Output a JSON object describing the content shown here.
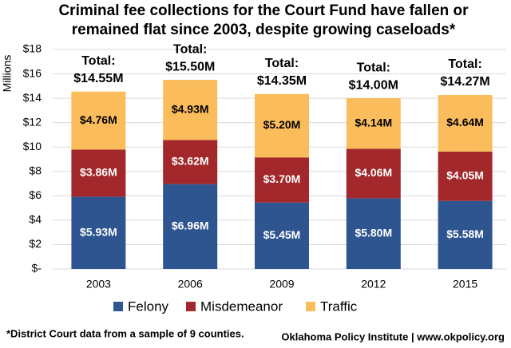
{
  "chart_data": {
    "type": "stacked_bar",
    "title": [
      "Criminal fee collections for the Court Fund have fallen or",
      "remained flat since 2003, despite growing caseloads*"
    ],
    "y_label": "Millions",
    "categories": [
      "2003",
      "2006",
      "2009",
      "2012",
      "2015"
    ],
    "series": [
      {
        "name": "Felony",
        "color": "#2e5590",
        "values": [
          5.93,
          6.96,
          5.45,
          5.8,
          5.58
        ],
        "value_labels": [
          "$5.93M",
          "$6.96M",
          "$5.45M",
          "$5.80M",
          "$5.58M"
        ]
      },
      {
        "name": "Misdemeanor",
        "color": "#a3282b",
        "values": [
          3.86,
          3.62,
          3.7,
          4.06,
          4.05
        ],
        "value_labels": [
          "$3.86M",
          "$3.62M",
          "$3.70M",
          "$4.06M",
          "$4.05M"
        ]
      },
      {
        "name": "Traffic",
        "color": "#fbbd5c",
        "values": [
          4.76,
          4.93,
          5.2,
          4.14,
          4.64
        ],
        "value_labels": [
          "$4.76M",
          "$4.93M",
          "$5.20M",
          "$4.14M",
          "$4.64M"
        ]
      }
    ],
    "totals": {
      "label": "Total:",
      "values": [
        14.55,
        15.5,
        14.35,
        14.0,
        14.27
      ],
      "value_labels": [
        "$14.55M",
        "$15.50M",
        "$14.35M",
        "$14.00M",
        "$14.27M"
      ]
    },
    "ylim": [
      0,
      18
    ],
    "yticks": [
      {
        "value": 0,
        "label": "$-"
      },
      {
        "value": 2,
        "label": "$2"
      },
      {
        "value": 4,
        "label": "$4"
      },
      {
        "value": 6,
        "label": "$6"
      },
      {
        "value": 8,
        "label": "$8"
      },
      {
        "value": 10,
        "label": "$10"
      },
      {
        "value": 12,
        "label": "$12"
      },
      {
        "value": 14,
        "label": "$14"
      },
      {
        "value": 16,
        "label": "$16"
      },
      {
        "value": 18,
        "label": "$18"
      }
    ],
    "grid": true,
    "legend": "bottom",
    "footnote": "*District Court data from a sample of 9 counties.",
    "source": "Oklahoma Policy Institute | www.okpolicy.org"
  }
}
